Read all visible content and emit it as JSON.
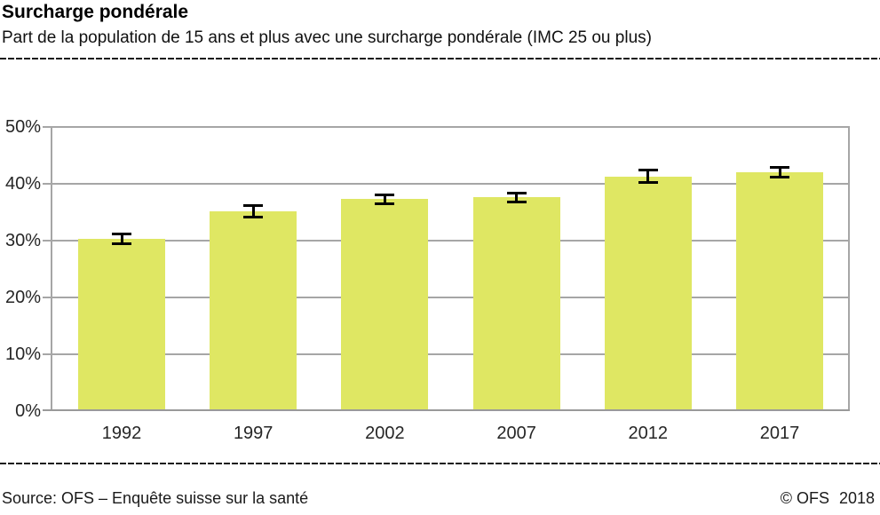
{
  "header": {
    "title": "Surcharge pondérale",
    "subtitle": "Part de la population de 15 ans et plus avec une surcharge pondérale (IMC 25 ou plus)"
  },
  "footer": {
    "source": "Source: OFS – Enquête suisse sur la santé",
    "copyright": "© OFS",
    "year": "2018"
  },
  "colors": {
    "bar": "#dfe763",
    "grid": "#a6a6a6",
    "error_bar": "#000000",
    "text": "#1a1a1a"
  },
  "chart_data": {
    "type": "bar",
    "title": "Surcharge pondérale",
    "subtitle": "Part de la population de 15 ans et plus avec une surcharge pondérale (IMC 25 ou plus)",
    "categories": [
      "1992",
      "1997",
      "2002",
      "2007",
      "2012",
      "2017"
    ],
    "values": [
      30.3,
      35.2,
      37.4,
      37.6,
      41.3,
      42.1
    ],
    "error_low": [
      29.5,
      34.2,
      36.6,
      36.8,
      40.3,
      41.2
    ],
    "error_high": [
      31.2,
      36.2,
      38.2,
      38.5,
      42.5,
      43.0
    ],
    "xlabel": "",
    "ylabel": "",
    "ylim": [
      0,
      50
    ],
    "yticks": [
      0,
      10,
      20,
      30,
      40,
      50
    ],
    "ytick_labels": [
      "0%",
      "10%",
      "20%",
      "30%",
      "40%",
      "50%"
    ],
    "grid": true,
    "legend": false,
    "bar_color": "#dfe763",
    "error_bars": true
  }
}
